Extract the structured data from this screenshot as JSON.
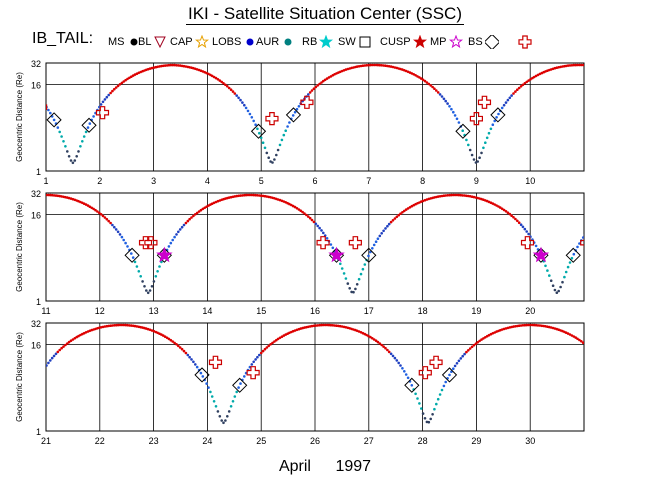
{
  "title": "IKI - Satellite Situation Center (SSC)",
  "legend": {
    "title": "IB_TAIL:",
    "items": [
      {
        "label": "MS",
        "color": "#000000",
        "marker": "dot"
      },
      {
        "label": "BL",
        "color": "#a0001e",
        "marker": "triangle-open"
      },
      {
        "label": "CAP",
        "color": "#e6a000",
        "marker": "star-open"
      },
      {
        "label": "LOBS",
        "color": "#0000cc",
        "marker": "dot"
      },
      {
        "label": "AUR",
        "color": "#008080",
        "marker": "dot"
      },
      {
        "label": "RB",
        "color": "#00cccc",
        "marker": "star"
      },
      {
        "label": "SW",
        "color": "#000000",
        "marker": "square-open"
      },
      {
        "label": "CUSP",
        "color": "#cc0000",
        "marker": "star-filled"
      },
      {
        "label": "MP",
        "color": "#cc00cc",
        "marker": "star-open"
      },
      {
        "label": "BS",
        "color": "#000000",
        "marker": "diamond-open"
      },
      {
        "label": "",
        "color": "#cc0000",
        "marker": "cross-open"
      }
    ]
  },
  "footer": {
    "month": "April",
    "year": "1997"
  },
  "chart_data": [
    {
      "type": "line",
      "ylabel": "Geocentric Distance (Re)",
      "yscale": "log",
      "ylim": [
        1,
        32
      ],
      "yticks": [
        "1",
        "16",
        "32"
      ],
      "xlim": [
        1,
        11
      ],
      "xticks": [
        "1",
        "2",
        "3",
        "4",
        "5",
        "6",
        "7",
        "8",
        "9",
        "10"
      ],
      "grid": true,
      "orbit": {
        "perigee_days": [
          1.5,
          5.2,
          9.0,
          12.9
        ],
        "apogee_re": 30,
        "perigee_re": 1.3
      },
      "markers": {
        "bow_shock_days": [
          1.15,
          1.8,
          4.95,
          5.6,
          8.75,
          9.4
        ],
        "magnetopause_days": [],
        "sw_days_ranges": [
          [
            1.9,
            3.0
          ],
          [
            5.7,
            6.8
          ],
          [
            9.5,
            10.6
          ]
        ]
      }
    },
    {
      "type": "line",
      "ylabel": "Geocentric Distance (Re)",
      "yscale": "log",
      "ylim": [
        1,
        32
      ],
      "yticks": [
        "1",
        "16",
        "32"
      ],
      "xlim": [
        11,
        21
      ],
      "xticks": [
        "11",
        "12",
        "13",
        "14",
        "15",
        "16",
        "17",
        "18",
        "19",
        "20"
      ],
      "grid": true,
      "orbit": {
        "perigee_days": [
          9.0,
          12.9,
          16.7,
          20.5
        ],
        "apogee_re": 30,
        "perigee_re": 1.3
      },
      "markers": {
        "bow_shock_days": [
          12.6,
          13.2,
          16.4,
          17.0,
          20.2,
          20.8
        ],
        "magnetopause_days": [
          13.2,
          16.4,
          20.2
        ],
        "sw_days_ranges": [
          [
            11.0,
            12.3
          ],
          [
            13.5,
            14.6
          ],
          [
            17.3,
            18.5
          ]
        ]
      }
    },
    {
      "type": "line",
      "ylabel": "Geocentric Distance (Re)",
      "yscale": "log",
      "ylim": [
        1,
        32
      ],
      "yticks": [
        "1",
        "16",
        "32"
      ],
      "xlim": [
        21,
        31
      ],
      "xticks": [
        "21",
        "22",
        "23",
        "24",
        "25",
        "26",
        "27",
        "28",
        "29",
        "30"
      ],
      "grid": true,
      "orbit": {
        "perigee_days": [
          20.5,
          24.3,
          28.1,
          31.9
        ],
        "apogee_re": 30,
        "perigee_re": 1.3
      },
      "markers": {
        "bow_shock_days": [
          23.9,
          24.6,
          27.8,
          28.5
        ],
        "magnetopause_days": [],
        "sw_days_ranges": [
          [
            21.0,
            23.6
          ],
          [
            24.9,
            27.4
          ],
          [
            28.8,
            31.0
          ]
        ]
      }
    }
  ]
}
